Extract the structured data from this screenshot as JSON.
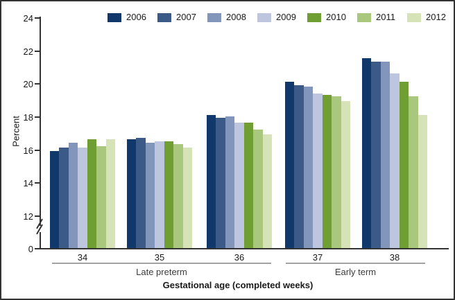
{
  "chart_data": {
    "type": "bar",
    "title": "",
    "xlabel": "Gestational age (completed weeks)",
    "ylabel": "Percent",
    "categories": [
      "34",
      "35",
      "36",
      "37",
      "38"
    ],
    "series": [
      {
        "name": "2006",
        "color": "#11386b",
        "values": [
          15.9,
          16.6,
          18.1,
          20.1,
          21.5
        ]
      },
      {
        "name": "2007",
        "color": "#3c5a87",
        "values": [
          16.1,
          16.7,
          17.9,
          19.9,
          21.3
        ]
      },
      {
        "name": "2008",
        "color": "#8295ba",
        "values": [
          16.4,
          16.4,
          18.0,
          19.8,
          21.3
        ]
      },
      {
        "name": "2009",
        "color": "#bdc6de",
        "values": [
          16.1,
          16.5,
          17.6,
          19.4,
          20.6
        ]
      },
      {
        "name": "2010",
        "color": "#6f9f33",
        "values": [
          16.6,
          16.5,
          17.6,
          19.3,
          20.1
        ]
      },
      {
        "name": "2011",
        "color": "#aac87d",
        "values": [
          16.2,
          16.3,
          17.2,
          19.2,
          19.2
        ]
      },
      {
        "name": "2012",
        "color": "#d5e3b6",
        "values": [
          16.6,
          16.1,
          16.9,
          18.9,
          18.1
        ]
      }
    ],
    "yticks": [
      0,
      12,
      14,
      16,
      18,
      20,
      22,
      24
    ],
    "ylim": [
      0,
      24
    ],
    "axis_break_between": [
      0,
      12
    ],
    "grid": false,
    "legend_position": "top",
    "group_labels": [
      {
        "label": "Late preterm",
        "categories": [
          "34",
          "35",
          "36"
        ]
      },
      {
        "label": "Early term",
        "categories": [
          "37",
          "38"
        ]
      }
    ]
  }
}
